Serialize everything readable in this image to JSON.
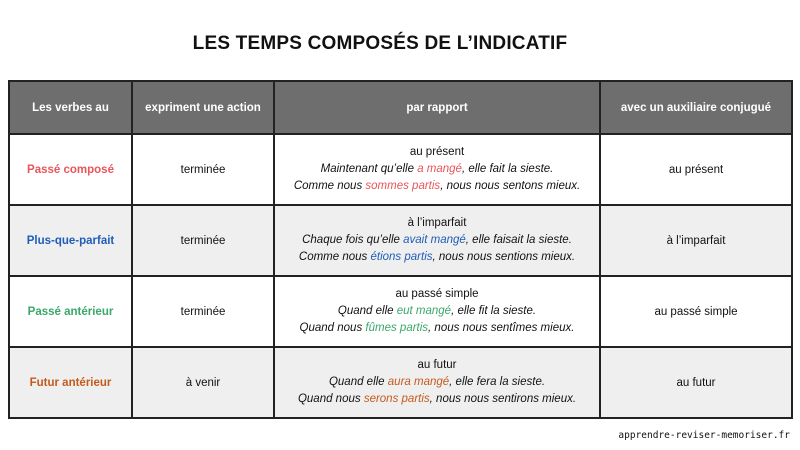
{
  "title": "LES TEMPS COMPOSÉS DE L’INDICATIF",
  "table": {
    "headers": [
      "Les verbes au",
      "expriment une action",
      "par rapport",
      "avec un auxiliaire conjugué"
    ],
    "rows": [
      {
        "tense": "Passé composé",
        "color": "#e8555a",
        "action": "terminée",
        "relation": "au présent",
        "auxiliary": "au présent",
        "examples": [
          {
            "before": "Maintenant qu’elle ",
            "verb": "a mangé",
            "after": ", elle fait la sieste."
          },
          {
            "before": "Comme nous ",
            "verb": "sommes partis",
            "after": ", nous nous sentons mieux."
          }
        ]
      },
      {
        "tense": "Plus-que-parfait",
        "color": "#1f5cb8",
        "action": "terminée",
        "relation": "à l’imparfait",
        "auxiliary": "à l’imparfait",
        "examples": [
          {
            "before": "Chaque fois qu’elle ",
            "verb": "avait mangé",
            "after": ", elle faisait la sieste."
          },
          {
            "before": "Comme nous ",
            "verb": "étions partis",
            "after": ", nous nous sentions mieux."
          }
        ]
      },
      {
        "tense": "Passé antérieur",
        "color": "#3aa86a",
        "action": "terminée",
        "relation": "au passé simple",
        "auxiliary": "au passé simple",
        "examples": [
          {
            "before": "Quand elle ",
            "verb": "eut mangé",
            "after": ", elle fit la sieste."
          },
          {
            "before": "Quand nous ",
            "verb": "fûmes partis",
            "after": ", nous nous sentîmes mieux."
          }
        ]
      },
      {
        "tense": "Futur antérieur",
        "color": "#c45a1c",
        "action": "à venir",
        "relation": "au futur",
        "auxiliary": "au futur",
        "examples": [
          {
            "before": "Quand elle ",
            "verb": "aura mangé",
            "after": ", elle fera la sieste."
          },
          {
            "before": "Quand nous ",
            "verb": "serons partis",
            "after": ", nous nous sentirons mieux."
          }
        ]
      }
    ]
  },
  "footer": "apprendre-reviser-memoriser.fr"
}
